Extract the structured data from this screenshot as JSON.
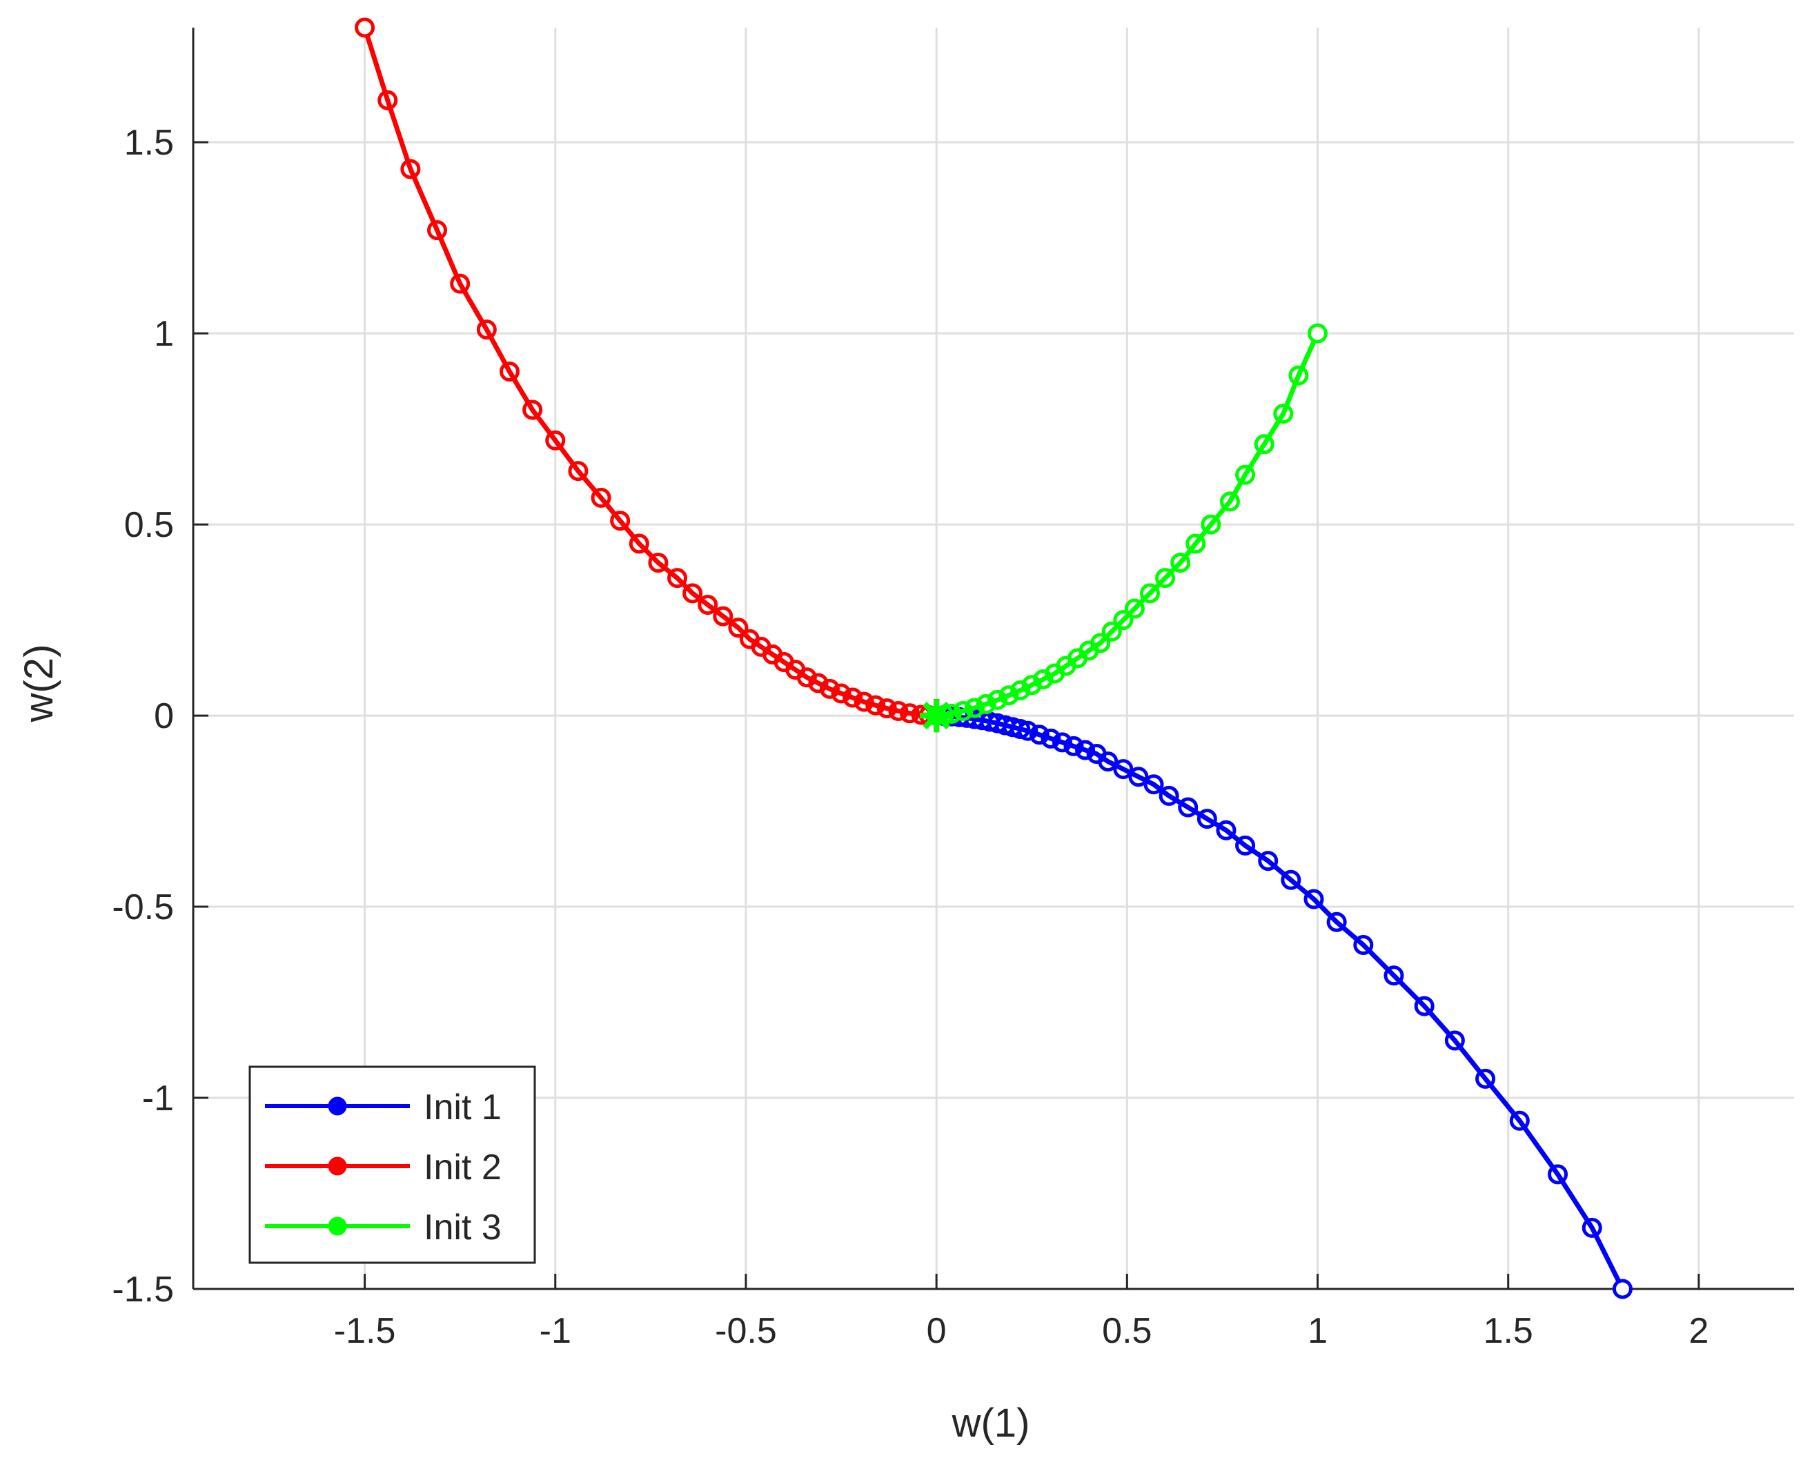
{
  "chart_data": {
    "type": "line",
    "title": "",
    "xlabel": "w(1)",
    "ylabel": "w(2)",
    "xlim": [
      -1.95,
      2.25
    ],
    "ylim": [
      -1.5,
      1.8
    ],
    "xticks": [
      -1.5,
      -1,
      -0.5,
      0,
      0.5,
      1,
      1.5,
      2
    ],
    "yticks": [
      -1.5,
      -1,
      -0.5,
      0,
      0.5,
      1,
      1.5
    ],
    "xtick_labels": [
      "-1.5",
      "-1",
      "-0.5",
      "0",
      "0.5",
      "1",
      "1.5",
      "2"
    ],
    "ytick_labels": [
      "-1.5",
      "-1",
      "-0.5",
      "0",
      "0.5",
      "1",
      "1.5"
    ],
    "grid": true,
    "legend_position": "bottom-left",
    "start_marker": "open-circle",
    "end_marker": "star",
    "series": [
      {
        "name": "Init 1",
        "color": "#0000ff",
        "start": [
          1.8,
          -1.5
        ],
        "x": [
          1.8,
          1.72,
          1.63,
          1.53,
          1.44,
          1.36,
          1.28,
          1.2,
          1.12,
          1.05,
          0.99,
          0.93,
          0.87,
          0.81,
          0.76,
          0.71,
          0.66,
          0.61,
          0.57,
          0.53,
          0.49,
          0.45,
          0.42,
          0.39,
          0.36,
          0.33,
          0.3,
          0.27,
          0.24,
          0.22,
          0.2,
          0.18,
          0.16,
          0.14,
          0.12,
          0.1,
          0.08,
          0.06,
          0.04,
          0.02,
          0.0
        ],
        "y": [
          -1.5,
          -1.34,
          -1.2,
          -1.06,
          -0.95,
          -0.85,
          -0.76,
          -0.68,
          -0.6,
          -0.54,
          -0.48,
          -0.43,
          -0.38,
          -0.34,
          -0.3,
          -0.27,
          -0.24,
          -0.21,
          -0.18,
          -0.16,
          -0.14,
          -0.12,
          -0.1,
          -0.09,
          -0.08,
          -0.07,
          -0.06,
          -0.05,
          -0.04,
          -0.035,
          -0.03,
          -0.025,
          -0.02,
          -0.016,
          -0.012,
          -0.009,
          -0.006,
          -0.004,
          -0.002,
          -0.001,
          0.0
        ]
      },
      {
        "name": "Init 2",
        "color": "#ff0000",
        "start": [
          -1.5,
          1.8
        ],
        "x": [
          -1.5,
          -1.44,
          -1.38,
          -1.31,
          -1.25,
          -1.18,
          -1.12,
          -1.06,
          -1.0,
          -0.94,
          -0.88,
          -0.83,
          -0.78,
          -0.73,
          -0.68,
          -0.64,
          -0.6,
          -0.56,
          -0.52,
          -0.49,
          -0.46,
          -0.43,
          -0.4,
          -0.37,
          -0.34,
          -0.31,
          -0.28,
          -0.25,
          -0.22,
          -0.19,
          -0.16,
          -0.13,
          -0.1,
          -0.07,
          -0.04,
          -0.02,
          0.0
        ],
        "y": [
          1.8,
          1.61,
          1.43,
          1.27,
          1.13,
          1.01,
          0.9,
          0.8,
          0.72,
          0.64,
          0.57,
          0.51,
          0.45,
          0.4,
          0.36,
          0.32,
          0.29,
          0.26,
          0.23,
          0.2,
          0.18,
          0.16,
          0.14,
          0.12,
          0.1,
          0.085,
          0.07,
          0.058,
          0.047,
          0.036,
          0.027,
          0.019,
          0.012,
          0.006,
          0.002,
          0.001,
          0.0
        ]
      },
      {
        "name": "Init 3",
        "color": "#00ff00",
        "start": [
          1.0,
          1.0
        ],
        "x": [
          1.0,
          0.95,
          0.91,
          0.86,
          0.81,
          0.77,
          0.72,
          0.68,
          0.64,
          0.6,
          0.56,
          0.52,
          0.49,
          0.46,
          0.43,
          0.4,
          0.37,
          0.34,
          0.31,
          0.28,
          0.25,
          0.22,
          0.19,
          0.16,
          0.13,
          0.1,
          0.07,
          0.04,
          0.02,
          0.0
        ],
        "y": [
          1.0,
          0.89,
          0.79,
          0.71,
          0.63,
          0.56,
          0.5,
          0.45,
          0.4,
          0.36,
          0.32,
          0.28,
          0.25,
          0.22,
          0.19,
          0.17,
          0.15,
          0.13,
          0.11,
          0.095,
          0.08,
          0.066,
          0.053,
          0.041,
          0.03,
          0.02,
          0.012,
          0.005,
          0.002,
          0.0
        ]
      }
    ]
  }
}
